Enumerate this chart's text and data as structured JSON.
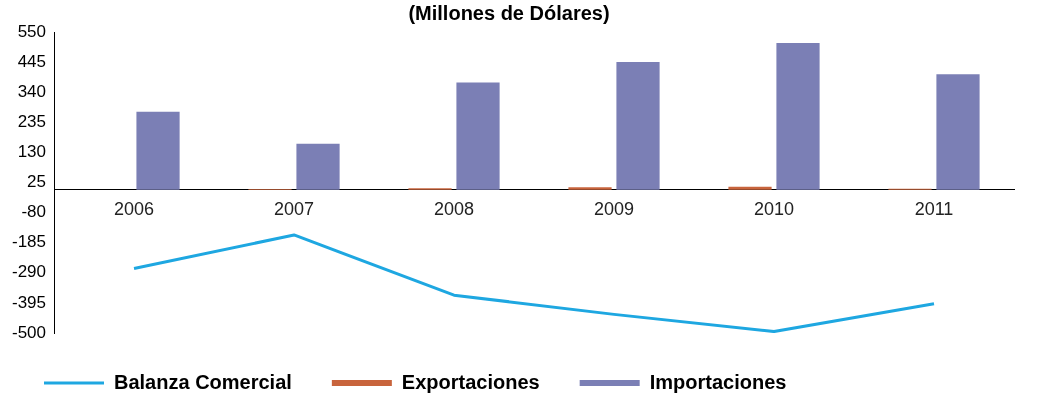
{
  "chart_data": {
    "type": "bar",
    "title": "(Millones de Dólares)",
    "categories": [
      "2006",
      "2007",
      "2008",
      "2009",
      "2010",
      "2011"
    ],
    "series": [
      {
        "name": "Exportaciones",
        "color": "#c8643c",
        "values": [
          0,
          2,
          5,
          8,
          10,
          3
        ]
      },
      {
        "name": "Importaciones",
        "color": "#7b7fb5",
        "values": [
          272,
          160,
          374,
          445,
          512,
          403
        ]
      },
      {
        "name": "Balanza Comercial",
        "type": "line",
        "color": "#1ea7e1",
        "values": [
          -275,
          -158,
          -368,
          -435,
          -495,
          -398
        ]
      }
    ],
    "ylim": [
      -500,
      550
    ],
    "yticks": [
      -500,
      -395,
      -290,
      -185,
      -80,
      25,
      130,
      235,
      340,
      445,
      550
    ],
    "grid": false,
    "legend": "bottom",
    "marker": "none"
  }
}
